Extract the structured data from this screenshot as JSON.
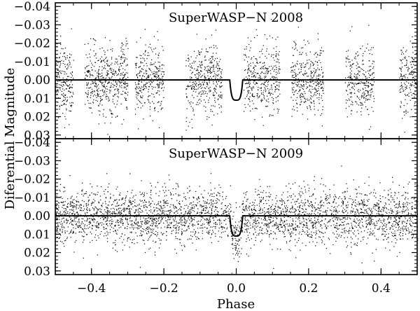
{
  "chart_data": {
    "type": "scatter",
    "xlabel": "Phase",
    "ylabel": "Diferential Magnitude",
    "xlim": [
      -0.5,
      0.5
    ],
    "x_ticks": [
      -0.4,
      -0.2,
      0.0,
      0.2,
      0.4
    ],
    "x_tick_labels": [
      "−0.4",
      "−0.2",
      "0.0",
      "0.2",
      "0.4"
    ],
    "y_inverted": true,
    "grid": false,
    "point_color": "#000000",
    "model_color": "#000000",
    "panels": [
      {
        "title": "SuperWASP−N 2008",
        "ylim": [
          0.032,
          -0.042
        ],
        "y_ticks": [
          -0.04,
          -0.03,
          -0.02,
          -0.01,
          0.0,
          0.01,
          0.02,
          0.03
        ],
        "y_tick_labels": [
          "−0.04",
          "−0.03",
          "−0.02",
          "−0.01",
          "0.00",
          "0.01",
          "0.02",
          "0.03"
        ],
        "transit_depth": 0.011,
        "transit_half_width": 0.018,
        "observed_phase_windows": [
          [
            -0.5,
            -0.45
          ],
          [
            -0.42,
            -0.3
          ],
          [
            -0.28,
            -0.2
          ],
          [
            -0.14,
            -0.04
          ],
          [
            0.02,
            0.12
          ],
          [
            0.15,
            0.24
          ],
          [
            0.3,
            0.38
          ],
          [
            0.45,
            0.5
          ]
        ],
        "scatter_std": 0.0095
      },
      {
        "title": "SuperWASP−N 2009",
        "ylim": [
          0.032,
          -0.042
        ],
        "y_ticks": [
          -0.04,
          -0.03,
          -0.02,
          -0.01,
          0.0,
          0.01,
          0.02,
          0.03
        ],
        "y_tick_labels": [
          "−0.04",
          "−0.03",
          "−0.02",
          "−0.01",
          "0.00",
          "0.01",
          "0.02",
          "0.03"
        ],
        "transit_depth": 0.011,
        "transit_half_width": 0.018,
        "observed_phase_windows": [
          [
            -0.5,
            0.5
          ]
        ],
        "scatter_std": 0.0075
      }
    ]
  }
}
